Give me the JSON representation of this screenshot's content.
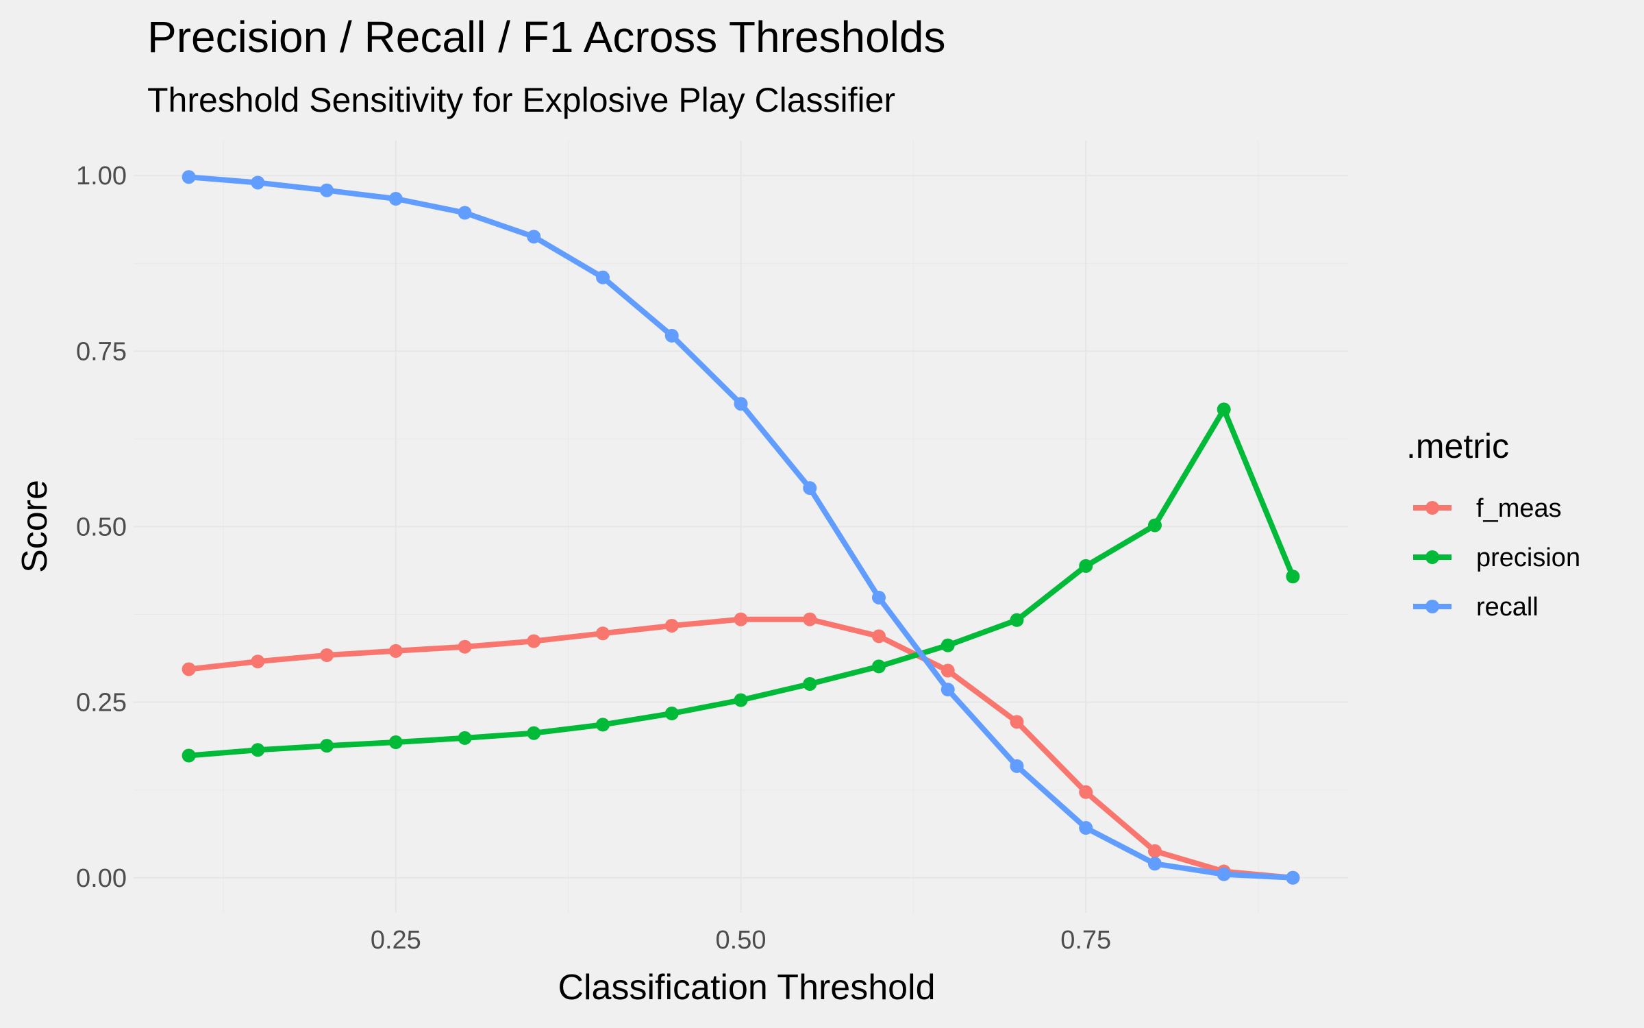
{
  "chart_data": {
    "type": "line",
    "title": "Precision / Recall / F1 Across Thresholds",
    "subtitle": "Threshold Sensitivity for Explosive Play Classifier",
    "xlabel": "Classification Threshold",
    "ylabel": "Score",
    "x_ticks": [
      "0.25",
      "0.50",
      "0.75"
    ],
    "x_tick_values": [
      0.25,
      0.5,
      0.75
    ],
    "y_ticks": [
      "0.00",
      "0.25",
      "0.50",
      "0.75",
      "1.00"
    ],
    "y_tick_values": [
      0,
      0.25,
      0.5,
      0.75,
      1.0
    ],
    "xlim": [
      0.06,
      0.94
    ],
    "ylim": [
      -0.05,
      1.05
    ],
    "grid": true,
    "legend": {
      "title": ".metric",
      "position": "right"
    },
    "x": [
      0.1,
      0.15,
      0.2,
      0.25,
      0.3,
      0.35,
      0.4,
      0.45,
      0.5,
      0.55,
      0.6,
      0.65,
      0.7,
      0.75,
      0.8,
      0.85,
      0.9
    ],
    "series": [
      {
        "name": "f_meas",
        "color": "#F8766D",
        "values": [
          0.297,
          0.308,
          0.317,
          0.323,
          0.329,
          0.337,
          0.348,
          0.359,
          0.368,
          0.368,
          0.344,
          0.295,
          0.222,
          0.122,
          0.038,
          0.009,
          0.0
        ]
      },
      {
        "name": "precision",
        "color": "#00BA38",
        "values": [
          0.174,
          0.182,
          0.188,
          0.193,
          0.199,
          0.206,
          0.218,
          0.234,
          0.253,
          0.276,
          0.301,
          0.331,
          0.367,
          0.444,
          0.502,
          0.667,
          0.429
        ]
      },
      {
        "name": "recall",
        "color": "#619CFF",
        "values": [
          0.998,
          0.99,
          0.979,
          0.967,
          0.947,
          0.913,
          0.855,
          0.772,
          0.675,
          0.555,
          0.399,
          0.268,
          0.159,
          0.071,
          0.02,
          0.005,
          0.0
        ]
      }
    ]
  }
}
